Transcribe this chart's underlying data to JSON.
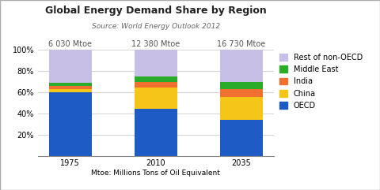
{
  "categories": [
    "1975",
    "2010",
    "2035"
  ],
  "bar_labels": [
    "6 030 Mtoe",
    "12 380 Mtoe",
    "16 730 Mtoe"
  ],
  "series": {
    "OECD": [
      60.0,
      44.5,
      34.0
    ],
    "China": [
      3.0,
      20.0,
      21.0
    ],
    "India": [
      2.5,
      4.5,
      7.5
    ],
    "Middle East": [
      3.0,
      5.5,
      6.5
    ],
    "Rest of non-OECD": [
      31.5,
      25.5,
      31.0
    ]
  },
  "colors": {
    "OECD": "#1f5bc4",
    "China": "#f5c518",
    "India": "#f07030",
    "Middle East": "#2aab2a",
    "Rest of non-OECD": "#c8bfe7"
  },
  "legend_order": [
    "Rest of non-OECD",
    "Middle East",
    "India",
    "China",
    "OECD"
  ],
  "title": "Global Energy Demand Share by Region",
  "subtitle": "Source: World Energy Outlook 2012",
  "xlabel": "Mtoe: Millions Tons of Oil Equivalent",
  "ylim": [
    0,
    100
  ],
  "yticks": [
    20,
    40,
    60,
    80,
    100
  ],
  "background_color": "#ffffff",
  "border_color": "#aaaaaa",
  "bar_width": 0.5,
  "title_fontsize": 9,
  "subtitle_fontsize": 6.5,
  "tick_fontsize": 7,
  "label_fontsize": 7,
  "xlabel_fontsize": 6.5,
  "legend_fontsize": 7
}
